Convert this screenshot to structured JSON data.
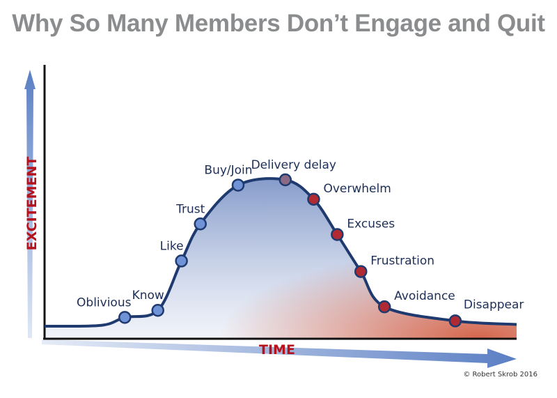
{
  "title": "Why So Many Members Don’t Engage and Quit",
  "credit": "© Robert Skrob 2016",
  "colors": {
    "title": "#8a8c8e",
    "curve": "#1f3a6e",
    "axis_arrow": "#5b7fc4",
    "axis_label": "#b5121b",
    "point_engaged": "#6f93d6",
    "point_peak": "#8a6a86",
    "point_declining": "#b02a34",
    "fill_blue": "#7f96c8",
    "fill_red": "#d2573a"
  },
  "chart_data": {
    "type": "line",
    "title": "Why So Many Members Don’t Engage and Quit",
    "xlabel": "TIME",
    "ylabel": "EXCITEMENT",
    "grid": false,
    "stages": [
      {
        "label": "Oblivious",
        "time": 0.17,
        "excitement": 0.05,
        "phase": "engaged"
      },
      {
        "label": "Know",
        "time": 0.24,
        "excitement": 0.09,
        "phase": "engaged"
      },
      {
        "label": "Like",
        "time": 0.29,
        "excitement": 0.37,
        "phase": "engaged"
      },
      {
        "label": "Trust",
        "time": 0.33,
        "excitement": 0.58,
        "phase": "engaged"
      },
      {
        "label": "Buy/Join",
        "time": 0.41,
        "excitement": 0.8,
        "phase": "engaged"
      },
      {
        "label": "Delivery delay",
        "time": 0.51,
        "excitement": 0.83,
        "phase": "peak"
      },
      {
        "label": "Overwhelm",
        "time": 0.57,
        "excitement": 0.72,
        "phase": "declining"
      },
      {
        "label": "Excuses",
        "time": 0.62,
        "excitement": 0.52,
        "phase": "declining"
      },
      {
        "label": "Frustration",
        "time": 0.67,
        "excitement": 0.31,
        "phase": "declining"
      },
      {
        "label": "Avoidance",
        "time": 0.72,
        "excitement": 0.11,
        "phase": "declining"
      },
      {
        "label": "Disappear",
        "time": 0.87,
        "excitement": 0.03,
        "phase": "declining"
      }
    ]
  }
}
